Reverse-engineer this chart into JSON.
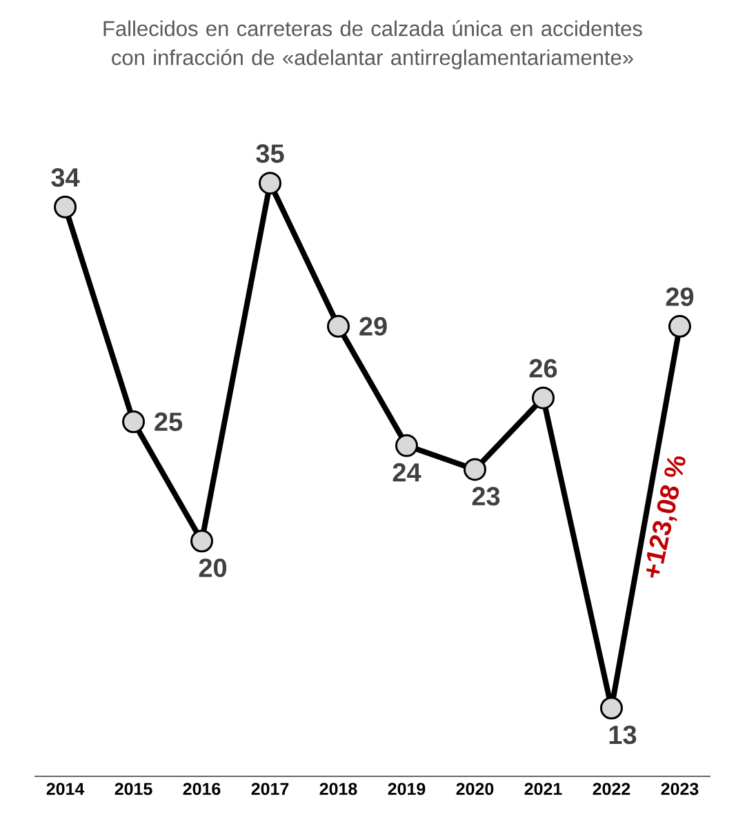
{
  "chart_data": {
    "type": "line",
    "title": "Fallecidos en carreteras de calzada única en accidentes con infracción de «adelantar antirreglamentariamente»",
    "categories": [
      "2014",
      "2015",
      "2016",
      "2017",
      "2018",
      "2019",
      "2020",
      "2021",
      "2022",
      "2023"
    ],
    "series": [
      {
        "color": "#000000",
        "values": [
          34,
          25,
          20,
          35,
          29,
          24,
          23,
          26,
          13,
          29
        ]
      }
    ],
    "data_labels": true,
    "marker": "circle",
    "line_style": "solid",
    "grid": false,
    "annotations": [
      "+123,08 %"
    ]
  }
}
